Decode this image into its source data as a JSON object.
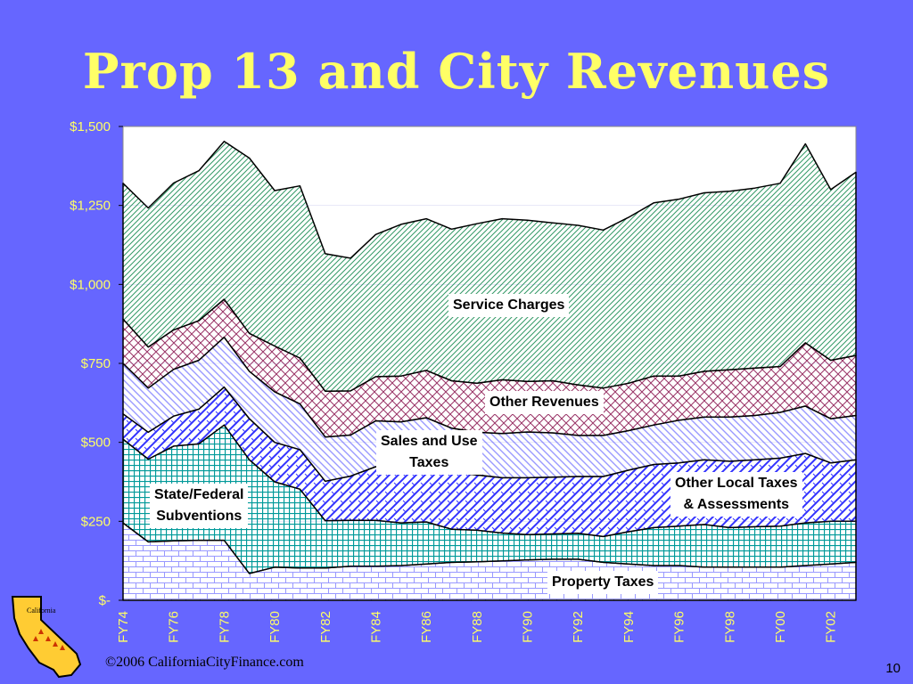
{
  "slide": {
    "title": "Prop 13 and City Revenues",
    "footer": "©2006 CaliforniaCityFinance.com",
    "page_number": "10"
  },
  "labels": {
    "service_charges": "Service Charges",
    "other_revenues": "Other Revenues",
    "sales_use_1": "Sales and Use",
    "sales_use_2": "Taxes",
    "state_fed_1": "State/Federal",
    "state_fed_2": "Subventions",
    "other_local_1": "Other Local Taxes",
    "other_local_2": "& Assessments",
    "property": "Property Taxes"
  },
  "colors": {
    "background": "#6666ff",
    "title": "#ffff66",
    "property": "#9999ff",
    "state_federal": "#009999",
    "other_local": "#3333ff",
    "sales_use": "#9999ff",
    "other_revenues": "#993366",
    "service": "#339966",
    "service_charges": "#993399"
  },
  "chart_data": {
    "type": "area",
    "stacked": true,
    "title": "Prop 13 and City Revenues",
    "ylim": [
      0,
      1500
    ],
    "yticks": [
      "$-",
      "$250",
      "$500",
      "$750",
      "$1,000",
      "$1,250",
      "$1,500"
    ],
    "xtick_labels": [
      "FY74",
      "FY76",
      "FY78",
      "FY80",
      "FY82",
      "FY84",
      "FY86",
      "FY88",
      "FY90",
      "FY92",
      "FY94",
      "FY96",
      "FY98",
      "FY00",
      "FY02"
    ],
    "categories": [
      "FY74",
      "FY75",
      "FY76",
      "FY77",
      "FY78",
      "FY79",
      "FY80",
      "FY81",
      "FY82",
      "FY83",
      "FY84",
      "FY85",
      "FY86",
      "FY87",
      "FY88",
      "FY89",
      "FY90",
      "FY91",
      "FY92",
      "FY93",
      "FY94",
      "FY95",
      "FY96",
      "FY97",
      "FY98",
      "FY99",
      "FY00",
      "FY01",
      "FY02",
      "FY03"
    ],
    "series": [
      {
        "name": "Property Taxes",
        "values": [
          245,
          185,
          188,
          190,
          190,
          85,
          105,
          102,
          102,
          108,
          108,
          110,
          115,
          120,
          122,
          125,
          128,
          130,
          130,
          120,
          115,
          110,
          110,
          105,
          105,
          105,
          105,
          110,
          115,
          120
        ]
      },
      {
        "name": "State/Federal Subventions",
        "values": [
          265,
          262,
          300,
          305,
          365,
          360,
          270,
          250,
          150,
          145,
          145,
          135,
          133,
          105,
          100,
          88,
          80,
          80,
          82,
          82,
          102,
          120,
          125,
          135,
          125,
          128,
          130,
          135,
          135,
          130
        ]
      },
      {
        "name": "Other Local Taxes & Assessments",
        "values": [
          80,
          85,
          95,
          110,
          120,
          130,
          125,
          125,
          125,
          140,
          170,
          175,
          180,
          180,
          175,
          175,
          180,
          180,
          180,
          190,
          195,
          200,
          200,
          205,
          210,
          212,
          215,
          220,
          185,
          195
        ]
      },
      {
        "name": "Sales and Use Taxes",
        "values": [
          160,
          140,
          148,
          155,
          158,
          150,
          160,
          145,
          140,
          130,
          145,
          145,
          150,
          140,
          135,
          140,
          145,
          140,
          130,
          130,
          125,
          125,
          135,
          135,
          140,
          140,
          145,
          150,
          140,
          140
        ]
      },
      {
        "name": "Other Revenues",
        "values": [
          140,
          130,
          125,
          125,
          120,
          120,
          145,
          145,
          145,
          140,
          140,
          145,
          150,
          150,
          155,
          170,
          160,
          165,
          160,
          150,
          150,
          155,
          140,
          145,
          150,
          150,
          145,
          200,
          185,
          190
        ]
      },
      {
        "name": "Service Charges",
        "values": [
          430,
          440,
          465,
          475,
          500,
          555,
          492,
          545,
          435,
          420,
          450,
          480,
          480,
          480,
          505,
          510,
          510,
          500,
          505,
          500,
          525,
          548,
          560,
          565,
          565,
          570,
          580,
          630,
          540,
          580
        ]
      }
    ]
  }
}
